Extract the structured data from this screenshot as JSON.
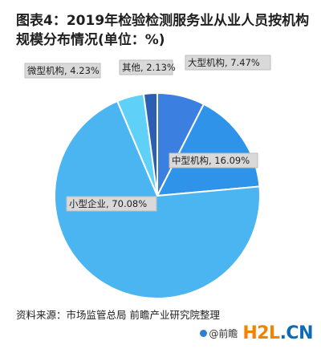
{
  "title_lines": [
    "图表4：2019年检验检测服务业从业人员按机构",
    "规模分布情况(单位：%)"
  ],
  "source": "资料来源：市场监管总局 前瞻产业研究院整理",
  "brand": {
    "at": "@前瞻",
    "domain_main": "H2L",
    "domain_suffix": ".CN"
  },
  "chart_data": {
    "type": "pie",
    "slices": [
      {
        "label": "大型机构",
        "value": 7.47,
        "color": "#3b7fe0",
        "display": "大型机构, 7.47%"
      },
      {
        "label": "中型机构",
        "value": 16.09,
        "color": "#2f93ea",
        "display": "中型机构, 16.09%"
      },
      {
        "label": "小型企业",
        "value": 70.08,
        "color": "#4bb5f2",
        "display": "小型企业, 70.08%"
      },
      {
        "label": "微型机构",
        "value": 4.23,
        "color": "#5fd0f7",
        "display": "微型机构, 4.23%"
      },
      {
        "label": "其他",
        "value": 2.13,
        "color": "#2c5fb4",
        "display": "其他, 2.13%"
      }
    ]
  }
}
